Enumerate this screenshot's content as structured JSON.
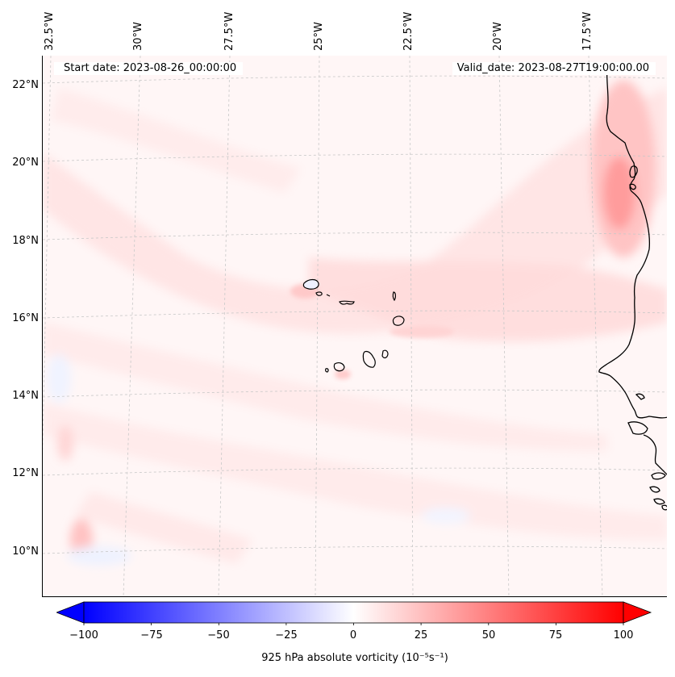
{
  "map": {
    "start_date_label": "Start date: 2023-08-26_00:00:00",
    "valid_date_label": "Valid_date: 2023-08-27T19:00:00.00",
    "longitude_labels": [
      "32.5°W",
      "30°W",
      "27.5°W",
      "25°W",
      "22.5°W",
      "20°W",
      "17.5°W"
    ],
    "latitude_labels": [
      "22°N",
      "20°N",
      "18°N",
      "16°N",
      "14°N",
      "12°N",
      "10°N"
    ],
    "field_variable": "925 hPa absolute vorticity",
    "features": [
      "Cape Verde islands",
      "West African coastline"
    ]
  },
  "colorbar": {
    "label": "925 hPa absolute vorticity (10⁻⁵s⁻¹)",
    "ticks": [
      "−100",
      "−75",
      "−50",
      "−25",
      "0",
      "25",
      "50",
      "75",
      "100"
    ],
    "min": -100,
    "max": 100,
    "low_color": "#0000ff",
    "mid_color": "#ffffff",
    "high_color": "#ff0000"
  }
}
